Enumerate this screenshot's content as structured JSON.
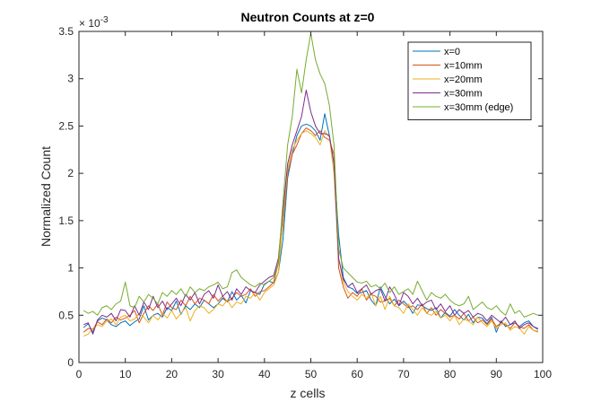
{
  "chart_data": {
    "type": "line",
    "title": "Neutron Counts at z=0",
    "xlabel": "z cells",
    "ylabel": "Normalized Count",
    "xlim": [
      0,
      100
    ],
    "ylim": [
      0,
      3.5
    ],
    "y_exponent": "× 10^-3",
    "y_exponent_base": "× 10",
    "y_exponent_power": "-3",
    "x_ticks": [
      0,
      10,
      20,
      30,
      40,
      50,
      60,
      70,
      80,
      90,
      100
    ],
    "x_tick_labels": [
      "0",
      "10",
      "20",
      "30",
      "40",
      "50",
      "60",
      "70",
      "80",
      "90",
      "100"
    ],
    "y_ticks": [
      0,
      0.5,
      1,
      1.5,
      2,
      2.5,
      3,
      3.5
    ],
    "y_tick_labels": [
      "0",
      "0.5",
      "1",
      "1.5",
      "2",
      "2.5",
      "3",
      "3.5"
    ],
    "grid": false,
    "legend_position": "top-right",
    "x": [
      1,
      2,
      3,
      4,
      5,
      6,
      7,
      8,
      9,
      10,
      11,
      12,
      13,
      14,
      15,
      16,
      17,
      18,
      19,
      20,
      21,
      22,
      23,
      24,
      25,
      26,
      27,
      28,
      29,
      30,
      31,
      32,
      33,
      34,
      35,
      36,
      37,
      38,
      39,
      40,
      41,
      42,
      43,
      44,
      45,
      46,
      47,
      48,
      49,
      50,
      51,
      52,
      53,
      54,
      55,
      56,
      57,
      58,
      59,
      60,
      61,
      62,
      63,
      64,
      65,
      66,
      67,
      68,
      69,
      70,
      71,
      72,
      73,
      74,
      75,
      76,
      77,
      78,
      79,
      80,
      81,
      82,
      83,
      84,
      85,
      86,
      87,
      88,
      89,
      90,
      91,
      92,
      93,
      94,
      95,
      96,
      97,
      98,
      99
    ],
    "series": [
      {
        "name": "x=0",
        "color": "#0072BD",
        "values": [
          0.37,
          0.41,
          0.32,
          0.44,
          0.47,
          0.45,
          0.4,
          0.38,
          0.42,
          0.44,
          0.39,
          0.43,
          0.46,
          0.6,
          0.45,
          0.5,
          0.52,
          0.48,
          0.58,
          0.55,
          0.65,
          0.51,
          0.6,
          0.56,
          0.62,
          0.58,
          0.66,
          0.62,
          0.58,
          0.62,
          0.68,
          0.64,
          0.75,
          0.66,
          0.71,
          0.63,
          0.76,
          0.74,
          0.72,
          0.83,
          0.86,
          0.84,
          0.95,
          1.3,
          1.95,
          2.2,
          2.4,
          2.5,
          2.52,
          2.5,
          2.45,
          2.35,
          2.63,
          2.4,
          2.1,
          1.35,
          0.9,
          0.8,
          0.78,
          0.73,
          0.74,
          0.76,
          0.66,
          0.6,
          0.8,
          0.7,
          0.62,
          0.67,
          0.6,
          0.65,
          0.6,
          0.52,
          0.61,
          0.6,
          0.57,
          0.55,
          0.58,
          0.47,
          0.53,
          0.49,
          0.56,
          0.5,
          0.45,
          0.51,
          0.42,
          0.48,
          0.47,
          0.41,
          0.48,
          0.32,
          0.44,
          0.38,
          0.4,
          0.42,
          0.38,
          0.42,
          0.44,
          0.38,
          0.35
        ]
      },
      {
        "name": "x=10mm",
        "color": "#D95319",
        "values": [
          0.32,
          0.36,
          0.35,
          0.43,
          0.4,
          0.46,
          0.42,
          0.48,
          0.45,
          0.47,
          0.5,
          0.55,
          0.42,
          0.52,
          0.6,
          0.55,
          0.62,
          0.5,
          0.64,
          0.58,
          0.56,
          0.66,
          0.6,
          0.7,
          0.62,
          0.68,
          0.66,
          0.62,
          0.72,
          0.65,
          0.7,
          0.64,
          0.68,
          0.74,
          0.7,
          0.72,
          0.78,
          0.7,
          0.75,
          0.76,
          0.8,
          0.85,
          1.05,
          1.45,
          2.0,
          2.2,
          2.3,
          2.42,
          2.48,
          2.45,
          2.4,
          2.45,
          2.38,
          2.35,
          2.2,
          1.0,
          0.8,
          0.68,
          0.74,
          0.7,
          0.78,
          0.66,
          0.72,
          0.7,
          0.64,
          0.65,
          0.68,
          0.6,
          0.66,
          0.62,
          0.58,
          0.6,
          0.56,
          0.62,
          0.52,
          0.58,
          0.5,
          0.56,
          0.52,
          0.48,
          0.5,
          0.46,
          0.52,
          0.44,
          0.48,
          0.42,
          0.45,
          0.4,
          0.46,
          0.38,
          0.42,
          0.4,
          0.36,
          0.42,
          0.38,
          0.36,
          0.4,
          0.34,
          0.33
        ]
      },
      {
        "name": "x=20mm",
        "color": "#EDB120",
        "values": [
          0.28,
          0.3,
          0.36,
          0.4,
          0.38,
          0.44,
          0.46,
          0.4,
          0.48,
          0.5,
          0.44,
          0.46,
          0.52,
          0.48,
          0.42,
          0.5,
          0.45,
          0.52,
          0.47,
          0.55,
          0.46,
          0.52,
          0.58,
          0.44,
          0.55,
          0.6,
          0.58,
          0.52,
          0.56,
          0.62,
          0.6,
          0.66,
          0.58,
          0.64,
          0.62,
          0.7,
          0.68,
          0.74,
          0.66,
          0.74,
          0.78,
          0.82,
          0.95,
          1.5,
          2.05,
          2.25,
          2.35,
          2.42,
          2.45,
          2.42,
          2.38,
          2.3,
          2.45,
          2.38,
          2.0,
          1.1,
          0.85,
          0.75,
          0.7,
          0.66,
          0.72,
          0.68,
          0.74,
          0.6,
          0.7,
          0.56,
          0.7,
          0.6,
          0.58,
          0.52,
          0.62,
          0.56,
          0.5,
          0.58,
          0.52,
          0.5,
          0.54,
          0.47,
          0.5,
          0.44,
          0.5,
          0.4,
          0.46,
          0.44,
          0.4,
          0.48,
          0.42,
          0.38,
          0.44,
          0.36,
          0.4,
          0.42,
          0.34,
          0.38,
          0.36,
          0.3,
          0.38,
          0.34,
          0.32
        ]
      },
      {
        "name": "x=30mm",
        "color": "#7E2F8E",
        "values": [
          0.4,
          0.42,
          0.3,
          0.45,
          0.5,
          0.48,
          0.52,
          0.44,
          0.56,
          0.55,
          0.48,
          0.6,
          0.5,
          0.64,
          0.56,
          0.7,
          0.58,
          0.65,
          0.56,
          0.62,
          0.68,
          0.6,
          0.72,
          0.66,
          0.74,
          0.62,
          0.72,
          0.76,
          0.68,
          0.82,
          0.7,
          0.75,
          0.66,
          0.78,
          0.72,
          0.8,
          0.76,
          0.74,
          0.82,
          0.86,
          0.9,
          0.92,
          1.1,
          1.6,
          2.1,
          2.3,
          2.45,
          2.6,
          2.88,
          2.65,
          2.5,
          2.42,
          2.42,
          2.4,
          2.1,
          1.1,
          0.88,
          0.8,
          0.84,
          0.74,
          0.78,
          0.82,
          0.72,
          0.76,
          0.78,
          0.65,
          0.8,
          0.72,
          0.6,
          0.74,
          0.7,
          0.62,
          0.68,
          0.6,
          0.64,
          0.66,
          0.56,
          0.62,
          0.54,
          0.6,
          0.5,
          0.56,
          0.52,
          0.55,
          0.48,
          0.52,
          0.5,
          0.44,
          0.5,
          0.46,
          0.42,
          0.48,
          0.4,
          0.44,
          0.36,
          0.4,
          0.42,
          0.38,
          0.36
        ]
      },
      {
        "name": "x=30mm (edge)",
        "color": "#77AC30",
        "values": [
          0.55,
          0.52,
          0.54,
          0.5,
          0.58,
          0.6,
          0.56,
          0.62,
          0.65,
          0.85,
          0.6,
          0.58,
          0.7,
          0.64,
          0.72,
          0.68,
          0.62,
          0.74,
          0.7,
          0.76,
          0.72,
          0.78,
          0.7,
          0.8,
          0.74,
          0.78,
          0.76,
          0.8,
          0.82,
          0.85,
          0.78,
          0.8,
          0.95,
          0.98,
          0.9,
          0.86,
          0.82,
          0.8,
          0.84,
          0.82,
          0.86,
          0.9,
          1.05,
          1.7,
          2.3,
          2.6,
          3.1,
          2.85,
          3.2,
          3.48,
          3.2,
          3.05,
          2.95,
          2.72,
          2.3,
          1.2,
          1.0,
          0.95,
          0.9,
          0.85,
          0.84,
          0.86,
          0.8,
          0.82,
          0.78,
          0.84,
          0.74,
          0.8,
          0.72,
          0.75,
          0.78,
          0.72,
          0.86,
          0.76,
          0.66,
          0.74,
          0.7,
          0.68,
          0.72,
          0.66,
          0.62,
          0.6,
          0.62,
          0.7,
          0.56,
          0.6,
          0.64,
          0.58,
          0.56,
          0.6,
          0.54,
          0.5,
          0.62,
          0.52,
          0.55,
          0.48,
          0.5,
          0.52,
          0.5
        ]
      }
    ]
  }
}
